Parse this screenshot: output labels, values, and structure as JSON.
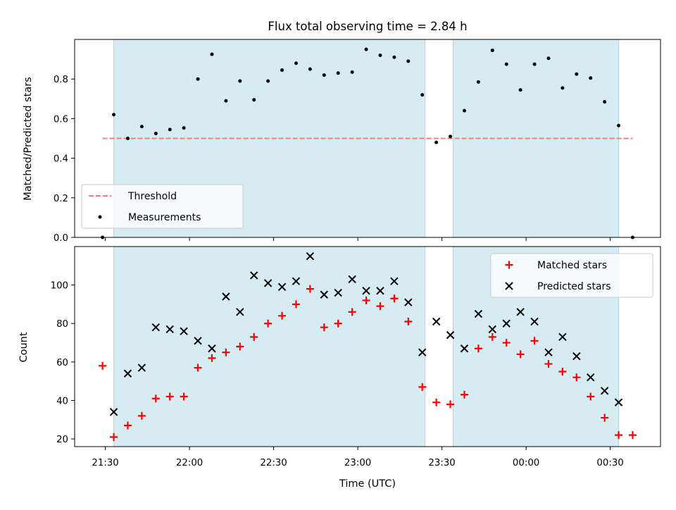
{
  "chart_data": {
    "title": "Flux total observing time = 2.84 h",
    "xlabel": "Time (UTC)",
    "x_ticks": [
      "21:30",
      "22:00",
      "22:30",
      "23:00",
      "23:30",
      "00:00",
      "00:30"
    ],
    "observing_windows": [
      [
        "21:33",
        "23:24"
      ],
      [
        "23:34",
        "00:33"
      ]
    ],
    "panels": [
      {
        "type": "scatter",
        "ylabel": "Matched/Predicted stars",
        "ylim": [
          0,
          1.0
        ],
        "y_ticks": [
          "0.0",
          "0.2",
          "0.4",
          "0.6",
          "0.8"
        ],
        "legend_position": "lower-left",
        "series": [
          {
            "name": "Threshold",
            "style": "dashed-line",
            "color": "#f08080",
            "x": [
              "21:29",
              "00:38"
            ],
            "y": [
              0.5,
              0.5
            ]
          },
          {
            "name": "Measurements",
            "style": "dot",
            "color": "#000000",
            "x": [
              "21:29",
              "21:33",
              "21:38",
              "21:43",
              "21:48",
              "21:53",
              "21:58",
              "22:03",
              "22:08",
              "22:13",
              "22:18",
              "22:23",
              "22:28",
              "22:33",
              "22:38",
              "22:43",
              "22:48",
              "22:53",
              "22:58",
              "23:03",
              "23:08",
              "23:13",
              "23:18",
              "23:23",
              "23:28",
              "23:33",
              "23:38",
              "23:43",
              "23:48",
              "23:53",
              "23:58",
              "00:03",
              "00:08",
              "00:13",
              "00:18",
              "00:23",
              "00:28",
              "00:33",
              "00:38"
            ],
            "y": [
              0.0,
              0.62,
              0.5,
              0.56,
              0.525,
              0.545,
              0.553,
              0.8,
              0.925,
              0.69,
              0.79,
              0.695,
              0.79,
              0.845,
              0.88,
              0.85,
              0.82,
              0.83,
              0.835,
              0.95,
              0.92,
              0.91,
              0.89,
              0.72,
              0.48,
              0.51,
              0.64,
              0.785,
              0.945,
              0.875,
              0.745,
              0.875,
              0.905,
              0.755,
              0.825,
              0.805,
              0.685,
              0.565,
              0.0
            ]
          }
        ]
      },
      {
        "type": "scatter",
        "ylabel": "Count",
        "ylim": [
          16,
          120
        ],
        "y_ticks": [
          "20",
          "40",
          "60",
          "80",
          "100"
        ],
        "legend_position": "upper-right",
        "series": [
          {
            "name": "Matched stars",
            "marker": "plus",
            "color": "#ff0000",
            "x": [
              "21:29",
              "21:33",
              "21:38",
              "21:43",
              "21:48",
              "21:53",
              "21:58",
              "22:03",
              "22:08",
              "22:13",
              "22:18",
              "22:23",
              "22:28",
              "22:33",
              "22:38",
              "22:43",
              "22:48",
              "22:53",
              "22:58",
              "23:03",
              "23:08",
              "23:13",
              "23:18",
              "23:23",
              "23:28",
              "23:33",
              "23:38",
              "23:43",
              "23:48",
              "23:53",
              "23:58",
              "00:03",
              "00:08",
              "00:13",
              "00:18",
              "00:23",
              "00:28",
              "00:33",
              "00:38"
            ],
            "y": [
              58,
              21,
              27,
              32,
              41,
              42,
              42,
              57,
              62,
              65,
              68,
              73,
              80,
              84,
              90,
              98,
              78,
              80,
              86,
              92,
              89,
              93,
              81,
              47,
              39,
              38,
              43,
              67,
              73,
              70,
              64,
              71,
              59,
              55,
              52,
              42,
              31,
              22,
              22
            ]
          },
          {
            "name": "Predicted stars",
            "marker": "x",
            "color": "#000000",
            "x": [
              "21:33",
              "21:38",
              "21:43",
              "21:48",
              "21:53",
              "21:58",
              "22:03",
              "22:08",
              "22:13",
              "22:18",
              "22:23",
              "22:28",
              "22:33",
              "22:38",
              "22:43",
              "22:48",
              "22:53",
              "22:58",
              "23:03",
              "23:08",
              "23:13",
              "23:18",
              "23:23",
              "23:28",
              "23:33",
              "23:38",
              "23:43",
              "23:48",
              "23:53",
              "23:58",
              "00:03",
              "00:08",
              "00:13",
              "00:18",
              "00:23",
              "00:28",
              "00:33"
            ],
            "y": [
              34,
              54,
              57,
              78,
              77,
              76,
              71,
              67,
              94,
              86,
              105,
              101,
              99,
              102,
              115,
              95,
              96,
              103,
              97,
              97,
              102,
              91,
              65,
              81,
              74,
              67,
              85,
              77,
              80,
              86,
              81,
              65,
              73,
              63,
              52,
              45,
              39
            ]
          }
        ]
      }
    ]
  },
  "colors": {
    "window_fill": "#add8e6",
    "window_opacity": 0.5,
    "threshold": "#f08080",
    "matched": "#ff0000",
    "predicted": "#000000",
    "measurement": "#000000"
  }
}
